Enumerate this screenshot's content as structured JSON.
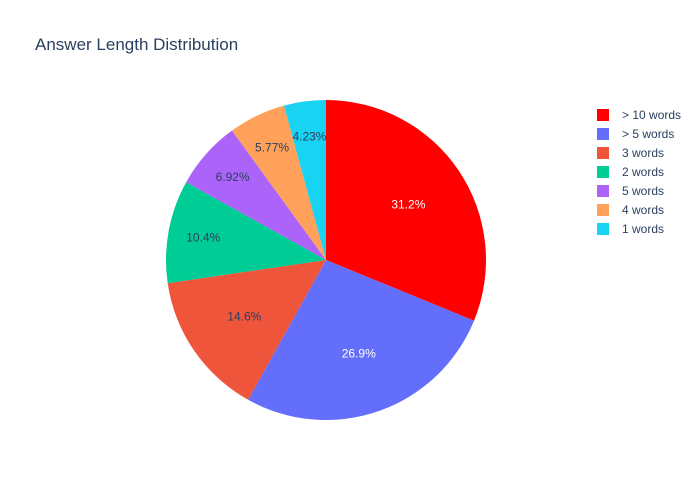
{
  "chart_data": {
    "type": "pie",
    "title": "Answer Length Distribution",
    "slices": [
      {
        "label": "> 10 words",
        "value": 31.2,
        "display": "31.2%",
        "color": "#ff0000",
        "label_color": "#ffffff"
      },
      {
        "label": "> 5 words",
        "value": 26.9,
        "display": "26.9%",
        "color": "#636efa",
        "label_color": "#ffffff"
      },
      {
        "label": "3 words",
        "value": 14.6,
        "display": "14.6%",
        "color": "#ef553b",
        "label_color": "#2a3f5f"
      },
      {
        "label": "2 words",
        "value": 10.4,
        "display": "10.4%",
        "color": "#00cc96",
        "label_color": "#2a3f5f"
      },
      {
        "label": "5 words",
        "value": 6.92,
        "display": "6.92%",
        "color": "#ab63fa",
        "label_color": "#2a3f5f"
      },
      {
        "label": "4 words",
        "value": 5.77,
        "display": "5.77%",
        "color": "#ffa15a",
        "label_color": "#2a3f5f"
      },
      {
        "label": "1 words",
        "value": 4.23,
        "display": "4.23%",
        "color": "#19d3f3",
        "label_color": "#2a3f5f"
      }
    ],
    "legend_position": "top-right",
    "direction": "clockwise",
    "start": "top"
  }
}
